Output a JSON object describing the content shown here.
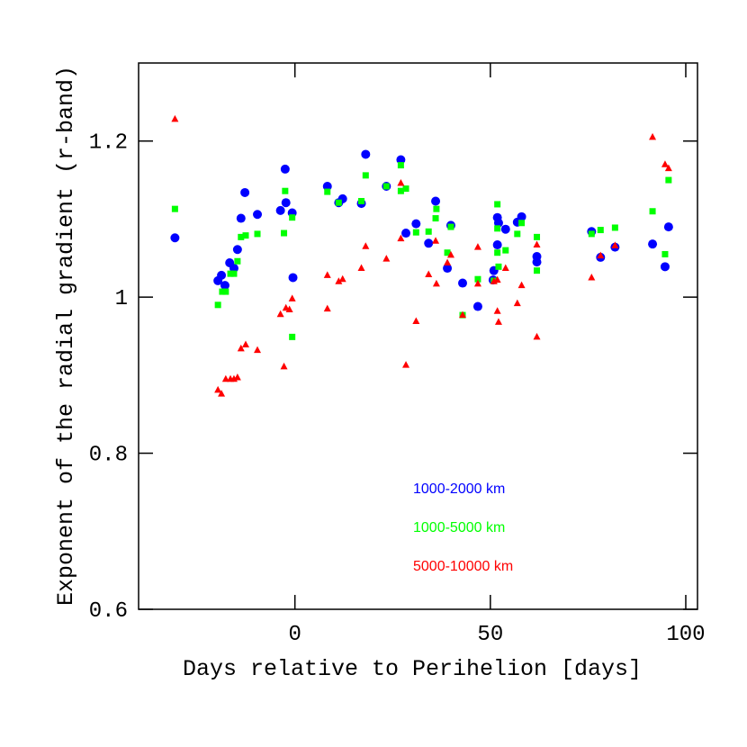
{
  "chart_data": {
    "type": "scatter",
    "x_label": "Days relative to Perihelion [days]",
    "y_label": "Exponent of the radial gradient (r-band)",
    "xlim": [
      -40,
      103
    ],
    "ylim": [
      0.6,
      1.3
    ],
    "xticks": [
      0,
      50,
      100
    ],
    "yticks": [
      0.6,
      0.8,
      1,
      1.2
    ],
    "series": [
      {
        "name": "1000-2000 km",
        "color": "#0000ff",
        "marker": "circle",
        "x": [
          -30.7,
          -19.7,
          -18.8,
          -17.9,
          -16.7,
          -15.6,
          -14.7,
          -13.8,
          -12.8,
          -9.6,
          -3.7,
          -2.5,
          -2.3,
          -0.7,
          -0.5,
          8.3,
          11.2,
          12.2,
          17.0,
          18.1,
          23.4,
          27.1,
          28.4,
          31.0,
          34.2,
          36.0,
          39.0,
          39.9,
          42.9,
          46.8,
          50.9,
          50.7,
          51.8,
          52.1,
          51.8,
          53.9,
          56.9,
          58.0,
          61.9,
          61.9,
          75.9,
          78.2,
          81.9,
          91.5,
          94.7,
          95.6
        ],
        "values": [
          1.076,
          1.021,
          1.028,
          1.015,
          1.044,
          1.037,
          1.061,
          1.101,
          1.134,
          1.106,
          1.111,
          1.164,
          1.121,
          1.108,
          1.025,
          1.142,
          1.121,
          1.126,
          1.12,
          1.183,
          1.142,
          1.176,
          1.082,
          1.094,
          1.069,
          1.123,
          1.037,
          1.092,
          1.018,
          0.988,
          1.034,
          1.022,
          1.102,
          1.095,
          1.067,
          1.087,
          1.096,
          1.103,
          1.052,
          1.045,
          1.084,
          1.051,
          1.064,
          1.068,
          1.039,
          1.09
        ]
      },
      {
        "name": "1000-5000 km",
        "color": "#00ff00",
        "marker": "square",
        "x": [
          -30.7,
          -19.7,
          -18.6,
          -17.7,
          -16.5,
          -15.6,
          -14.7,
          -13.8,
          -12.6,
          -9.6,
          -2.8,
          -2.5,
          -0.7,
          -0.7,
          8.3,
          11.2,
          17.0,
          18.1,
          23.4,
          27.1,
          27.1,
          28.4,
          31.0,
          34.2,
          36.0,
          36.2,
          39.0,
          39.9,
          42.9,
          46.8,
          50.9,
          51.8,
          51.8,
          51.8,
          52.1,
          53.9,
          56.9,
          58.0,
          61.9,
          61.9,
          75.9,
          78.2,
          81.9,
          91.5,
          94.7,
          95.6
        ],
        "values": [
          1.113,
          0.99,
          1.007,
          1.007,
          1.03,
          1.03,
          1.046,
          1.077,
          1.079,
          1.081,
          1.082,
          1.136,
          1.102,
          0.949,
          1.135,
          1.121,
          1.123,
          1.156,
          1.142,
          1.169,
          1.136,
          1.139,
          1.083,
          1.084,
          1.101,
          1.113,
          1.057,
          1.09,
          0.977,
          1.023,
          1.021,
          1.119,
          1.088,
          1.057,
          1.039,
          1.06,
          1.081,
          1.095,
          1.077,
          1.034,
          1.081,
          1.086,
          1.089,
          1.11,
          1.055,
          1.15
        ]
      },
      {
        "name": "5000-10000 km",
        "color": "#ff0000",
        "marker": "triangle",
        "x": [
          -30.7,
          -19.7,
          -18.8,
          -17.7,
          -16.5,
          -15.6,
          -14.7,
          -13.8,
          -12.6,
          -9.6,
          -3.7,
          -2.8,
          -2.3,
          -1.4,
          -0.7,
          8.3,
          8.3,
          11.2,
          12.2,
          17.0,
          18.1,
          23.4,
          27.1,
          27.1,
          28.4,
          31.0,
          34.2,
          36.0,
          36.2,
          39.0,
          39.9,
          42.9,
          46.8,
          46.8,
          50.9,
          51.8,
          51.8,
          52.1,
          53.9,
          56.9,
          58.0,
          61.9,
          61.9,
          75.9,
          78.2,
          81.9,
          91.5,
          94.7,
          95.6
        ],
        "values": [
          1.228,
          0.881,
          0.876,
          0.895,
          0.895,
          0.895,
          0.897,
          0.934,
          0.939,
          0.932,
          0.978,
          0.911,
          0.986,
          0.984,
          0.998,
          1.028,
          0.985,
          1.02,
          1.023,
          1.037,
          1.065,
          1.049,
          1.146,
          1.075,
          0.913,
          0.969,
          1.029,
          1.072,
          1.017,
          1.044,
          1.054,
          0.977,
          1.064,
          1.017,
          1.02,
          1.022,
          0.982,
          0.968,
          1.037,
          0.992,
          1.015,
          1.067,
          0.949,
          1.025,
          1.053,
          1.066,
          1.205,
          1.17,
          1.165
        ]
      }
    ]
  }
}
